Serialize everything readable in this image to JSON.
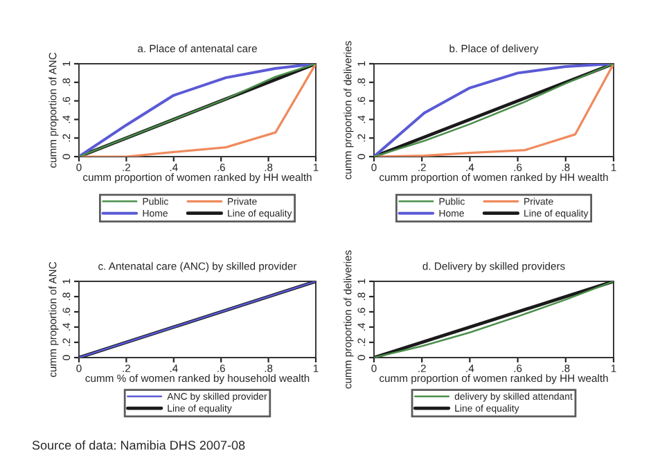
{
  "chart_data": [
    {
      "type": "line",
      "title": "a. Place of antenatal care",
      "xlabel": "cumm proportion of women ranked by HH wealth",
      "ylabel": "cumm proportion of ANC",
      "xlim": [
        0,
        1
      ],
      "ylim": [
        0,
        1
      ],
      "xticks": [
        0,
        {
          "value": 0.2,
          "label": ".2"
        },
        {
          "value": 0.4,
          "label": ".4"
        },
        {
          "value": 0.6,
          "label": ".6"
        },
        {
          "value": 0.8,
          "label": ".8"
        },
        1
      ],
      "yticks": [
        0,
        {
          "value": 0.2,
          "label": ".2"
        },
        {
          "value": 0.4,
          "label": ".4"
        },
        {
          "value": 0.6,
          "label": ".6"
        },
        {
          "value": 0.8,
          "label": ".8"
        },
        1
      ],
      "grid": false,
      "legend": "bottom",
      "series": [
        {
          "name": "Public",
          "color": "#4a8f4a",
          "x": [
            0,
            0.2,
            0.4,
            0.62,
            0.83,
            1
          ],
          "values": [
            0,
            0.2,
            0.4,
            0.62,
            0.86,
            1
          ]
        },
        {
          "name": "Private",
          "color": "#f08a5d",
          "x": [
            0,
            0.2,
            0.4,
            0.62,
            0.83,
            1
          ],
          "values": [
            0,
            0.0,
            0.05,
            0.1,
            0.26,
            1
          ]
        },
        {
          "name": "Home",
          "color": "#5a5ad6",
          "x": [
            0,
            0.2,
            0.4,
            0.62,
            0.83,
            1
          ],
          "values": [
            0,
            0.34,
            0.66,
            0.85,
            0.95,
            1
          ]
        },
        {
          "name": "Line of equality",
          "color": "#1a1a1a",
          "x": [
            0,
            1
          ],
          "values": [
            0,
            1
          ]
        }
      ]
    },
    {
      "type": "line",
      "title": "b. Place of delivery",
      "xlabel": "cumm proportion of women ranked by HH wealth",
      "ylabel": "cumm proportion of deliveries",
      "xlim": [
        0,
        1
      ],
      "ylim": [
        0,
        1
      ],
      "xticks": [
        0,
        {
          "value": 0.2,
          "label": ".2"
        },
        {
          "value": 0.4,
          "label": ".4"
        },
        {
          "value": 0.6,
          "label": ".6"
        },
        {
          "value": 0.8,
          "label": ".8"
        },
        1
      ],
      "yticks": [
        0,
        {
          "value": 0.2,
          "label": ".2"
        },
        {
          "value": 0.4,
          "label": ".4"
        },
        {
          "value": 0.6,
          "label": ".6"
        },
        {
          "value": 0.8,
          "label": ".8"
        },
        1
      ],
      "grid": false,
      "legend": "bottom",
      "series": [
        {
          "name": "Public",
          "color": "#4a8f4a",
          "x": [
            0,
            0.21,
            0.4,
            0.62,
            0.81,
            1
          ],
          "values": [
            0,
            0.17,
            0.35,
            0.58,
            0.8,
            1
          ]
        },
        {
          "name": "Private",
          "color": "#f08a5d",
          "x": [
            0,
            0.21,
            0.4,
            0.63,
            0.84,
            1
          ],
          "values": [
            0,
            0.01,
            0.04,
            0.07,
            0.24,
            1
          ]
        },
        {
          "name": "Home",
          "color": "#5a5ad6",
          "x": [
            0,
            0.21,
            0.4,
            0.6,
            0.8,
            1
          ],
          "values": [
            0,
            0.47,
            0.74,
            0.9,
            0.97,
            1
          ]
        },
        {
          "name": "Line of equality",
          "color": "#1a1a1a",
          "x": [
            0,
            1
          ],
          "values": [
            0,
            1
          ]
        }
      ]
    },
    {
      "type": "line",
      "title": "c. Antenatal care (ANC) by skilled provider",
      "xlabel": "cumm % of women ranked by household wealth",
      "ylabel": "cumm proportion of ANC",
      "xlim": [
        0,
        1
      ],
      "ylim": [
        0,
        1
      ],
      "xticks": [
        0,
        {
          "value": 0.2,
          "label": ".2"
        },
        {
          "value": 0.4,
          "label": ".4"
        },
        {
          "value": 0.6,
          "label": ".6"
        },
        {
          "value": 0.8,
          "label": ".8"
        },
        1
      ],
      "yticks": [
        0,
        {
          "value": 0.2,
          "label": ".2"
        },
        {
          "value": 0.4,
          "label": ".4"
        },
        {
          "value": 0.6,
          "label": ".6"
        },
        {
          "value": 0.8,
          "label": ".8"
        },
        1
      ],
      "grid": false,
      "legend": "bottom",
      "series": [
        {
          "name": "ANC by skilled provider",
          "color": "#5a5ad6",
          "x": [
            0,
            0.2,
            0.4,
            0.6,
            0.8,
            1
          ],
          "values": [
            0,
            0.2,
            0.4,
            0.6,
            0.8,
            1
          ]
        },
        {
          "name": "Line of equality",
          "color": "#1a1a1a",
          "x": [
            0,
            1
          ],
          "values": [
            0,
            1
          ]
        }
      ]
    },
    {
      "type": "line",
      "title": "d. Delivery by skilled providers",
      "xlabel": "cumm proportion of women ranked by HH wealth",
      "ylabel": "cumm proportion of deliveries",
      "xlim": [
        0,
        1
      ],
      "ylim": [
        0,
        1
      ],
      "xticks": [
        0,
        {
          "value": 0.2,
          "label": ".2"
        },
        {
          "value": 0.4,
          "label": ".4"
        },
        {
          "value": 0.6,
          "label": ".6"
        },
        {
          "value": 0.8,
          "label": ".8"
        },
        1
      ],
      "yticks": [
        0,
        {
          "value": 0.2,
          "label": ".2"
        },
        {
          "value": 0.4,
          "label": ".4"
        },
        {
          "value": 0.6,
          "label": ".6"
        },
        {
          "value": 0.8,
          "label": ".8"
        },
        1
      ],
      "grid": false,
      "legend": "bottom",
      "annotations": [
        "Source of data: Namibia DHS 2007-08"
      ],
      "series": [
        {
          "name": "delivery by skilled attendant",
          "color": "#4a8f4a",
          "x": [
            0,
            0.2,
            0.4,
            0.6,
            0.8,
            1
          ],
          "values": [
            0,
            0.15,
            0.33,
            0.54,
            0.76,
            1
          ]
        },
        {
          "name": "Line of equality",
          "color": "#1a1a1a",
          "x": [
            0,
            1
          ],
          "values": [
            0,
            1
          ]
        }
      ]
    }
  ]
}
